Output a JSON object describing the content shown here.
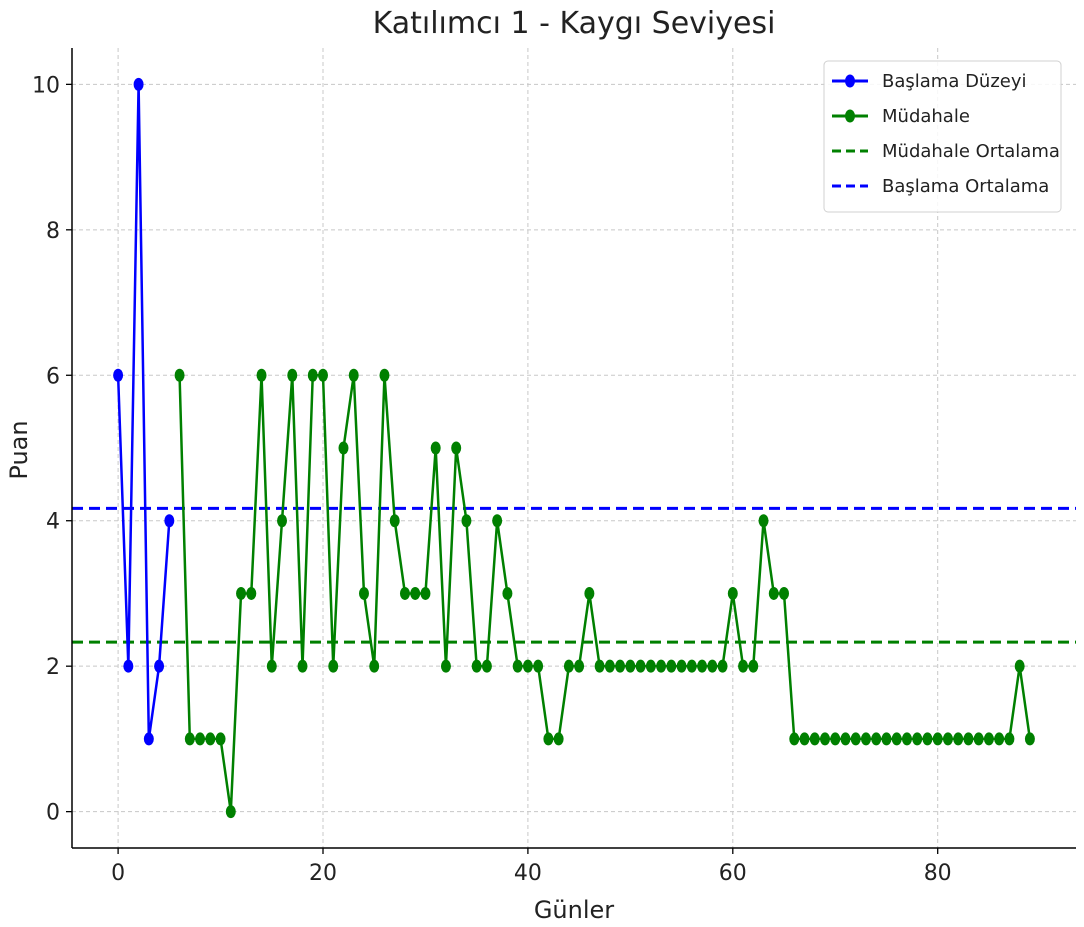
{
  "chart_data": {
    "type": "line",
    "title": "Katılımcı 1 - Kaygı Seviyesi",
    "xlabel": "Günler",
    "ylabel": "Puan",
    "xlim": [
      -4.5,
      93.5
    ],
    "ylim": [
      -0.5,
      10.5
    ],
    "xticks": [
      0,
      20,
      40,
      60,
      80
    ],
    "yticks": [
      0,
      2,
      4,
      6,
      8,
      10
    ],
    "grid": true,
    "legend_position": "top-right",
    "series": [
      {
        "name": "Başlama Düzeyi",
        "color": "#0000ff",
        "marker": "circle",
        "x": [
          0,
          1,
          2,
          3,
          4,
          5
        ],
        "y": [
          6,
          2,
          10,
          1,
          2,
          4
        ]
      },
      {
        "name": "Müdahale",
        "color": "#008000",
        "marker": "circle",
        "x": [
          6,
          7,
          8,
          9,
          10,
          11,
          12,
          13,
          14,
          15,
          16,
          17,
          18,
          19,
          20,
          21,
          22,
          23,
          24,
          25,
          26,
          27,
          28,
          29,
          30,
          31,
          32,
          33,
          34,
          35,
          36,
          37,
          38,
          39,
          40,
          41,
          42,
          43,
          44,
          45,
          46,
          47,
          48,
          49,
          50,
          51,
          52,
          53,
          54,
          55,
          56,
          57,
          58,
          59,
          60,
          61,
          62,
          63,
          64,
          65,
          66,
          67,
          68,
          69,
          70,
          71,
          72,
          73,
          74,
          75,
          76,
          77,
          78,
          79,
          80,
          81,
          82,
          83,
          84,
          85,
          86,
          87,
          88,
          89
        ],
        "y": [
          6,
          1,
          1,
          1,
          1,
          0,
          3,
          3,
          6,
          2,
          4,
          6,
          2,
          6,
          6,
          2,
          5,
          6,
          3,
          2,
          6,
          4,
          3,
          3,
          3,
          5,
          2,
          5,
          4,
          2,
          2,
          4,
          3,
          2,
          2,
          2,
          1,
          1,
          2,
          2,
          3,
          2,
          2,
          2,
          2,
          2,
          2,
          2,
          2,
          2,
          2,
          2,
          2,
          2,
          3,
          2,
          2,
          4,
          3,
          3,
          1,
          1,
          1,
          1,
          1,
          1,
          1,
          1,
          1,
          1,
          1,
          1,
          1,
          1,
          1,
          1,
          1,
          1,
          1,
          1,
          1,
          1,
          2,
          1
        ]
      }
    ],
    "reference_lines": [
      {
        "name": "Müdahale Ortalama",
        "color": "#008000",
        "style": "dashed",
        "y": 2.33
      },
      {
        "name": "Başlama Ortalama",
        "color": "#0000ff",
        "style": "dashed",
        "y": 4.17
      }
    ]
  }
}
